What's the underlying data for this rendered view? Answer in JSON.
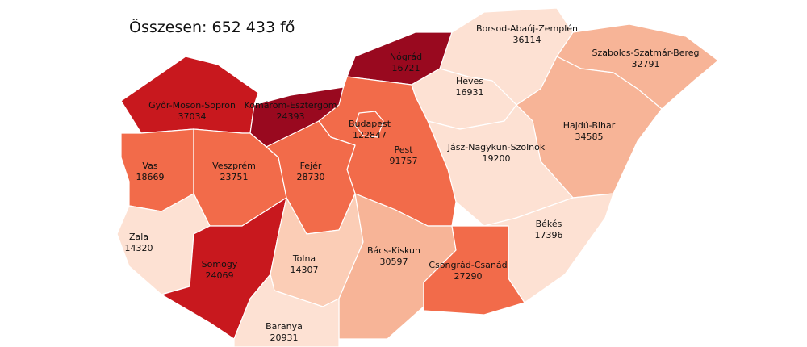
{
  "title": "Összesen: 652 433 fő",
  "regions": [
    {
      "name": "Győr-Moson-Sopron",
      "value": "37034",
      "color": "#c8181e"
    },
    {
      "name": "Komárom-Esztergom",
      "value": "24393",
      "color": "#99091f"
    },
    {
      "name": "Nógrád",
      "value": "16721",
      "color": "#99091f"
    },
    {
      "name": "Borsod-Abaúj-Zemplén",
      "value": "36114",
      "color": "#fde1d3"
    },
    {
      "name": "Szabolcs-Szatmár-Bereg",
      "value": "32791",
      "color": "#f7b497"
    },
    {
      "name": "Heves",
      "value": "16931",
      "color": "#fde1d3"
    },
    {
      "name": "Hajdú-Bihar",
      "value": "34585",
      "color": "#f7b497"
    },
    {
      "name": "Jász-Nagykun-Szolnok",
      "value": "19200",
      "color": "#fde1d3"
    },
    {
      "name": "Békés",
      "value": "17396",
      "color": "#fde1d3"
    },
    {
      "name": "Pest",
      "value": "91757",
      "color": "#f26b4a"
    },
    {
      "name": "Budapest",
      "value": "122847",
      "color": "#f26b4a"
    },
    {
      "name": "Vas",
      "value": "18669",
      "color": "#f26b4a"
    },
    {
      "name": "Veszprém",
      "value": "23751",
      "color": "#f26b4a"
    },
    {
      "name": "Fejér",
      "value": "28730",
      "color": "#f26b4a"
    },
    {
      "name": "Zala",
      "value": "14320",
      "color": "#fde1d3"
    },
    {
      "name": "Somogy",
      "value": "24069",
      "color": "#c8181e"
    },
    {
      "name": "Tolna",
      "value": "14307",
      "color": "#fbcdb6"
    },
    {
      "name": "Bács-Kiskun",
      "value": "30597",
      "color": "#f7b497"
    },
    {
      "name": "Csongrád-Csanád",
      "value": "27290",
      "color": "#f26b4a"
    },
    {
      "name": "Baranya",
      "value": "20931",
      "color": "#fde1d3"
    }
  ]
}
